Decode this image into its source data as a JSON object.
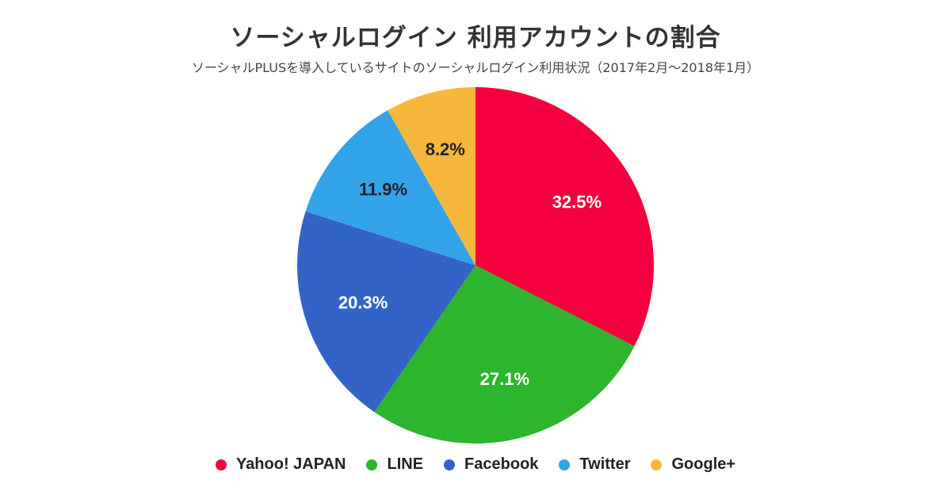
{
  "header": {
    "title": "ソーシャルログイン 利用アカウントの割合",
    "subtitle": "ソーシャルPLUSを導入しているサイトのソーシャルログイン利用状況（2017年2月〜2018年1月）"
  },
  "chart_data": {
    "type": "pie",
    "title": "ソーシャルログイン 利用アカウントの割合",
    "subtitle": "ソーシャルPLUSを導入しているサイトのソーシャルログイン利用状況（2017年2月〜2018年1月）",
    "legend_position": "bottom",
    "start_angle": "12 o'clock, clockwise",
    "slices": [
      {
        "name": "Yahoo! JAPAN",
        "value": 32.5,
        "label": "32.5%",
        "color": "#f5003f",
        "label_color": "#ffffff"
      },
      {
        "name": "LINE",
        "value": 27.1,
        "label": "27.1%",
        "color": "#2db52d",
        "label_color": "#ffffff"
      },
      {
        "name": "Facebook",
        "value": 20.3,
        "label": "20.3%",
        "color": "#3463c8",
        "label_color": "#ffffff"
      },
      {
        "name": "Twitter",
        "value": 11.9,
        "label": "11.9%",
        "color": "#33a3ea",
        "label_color": "#222222"
      },
      {
        "name": "Google+",
        "value": 8.2,
        "label": "8.2%",
        "color": "#f6b73c",
        "label_color": "#222222"
      }
    ]
  }
}
